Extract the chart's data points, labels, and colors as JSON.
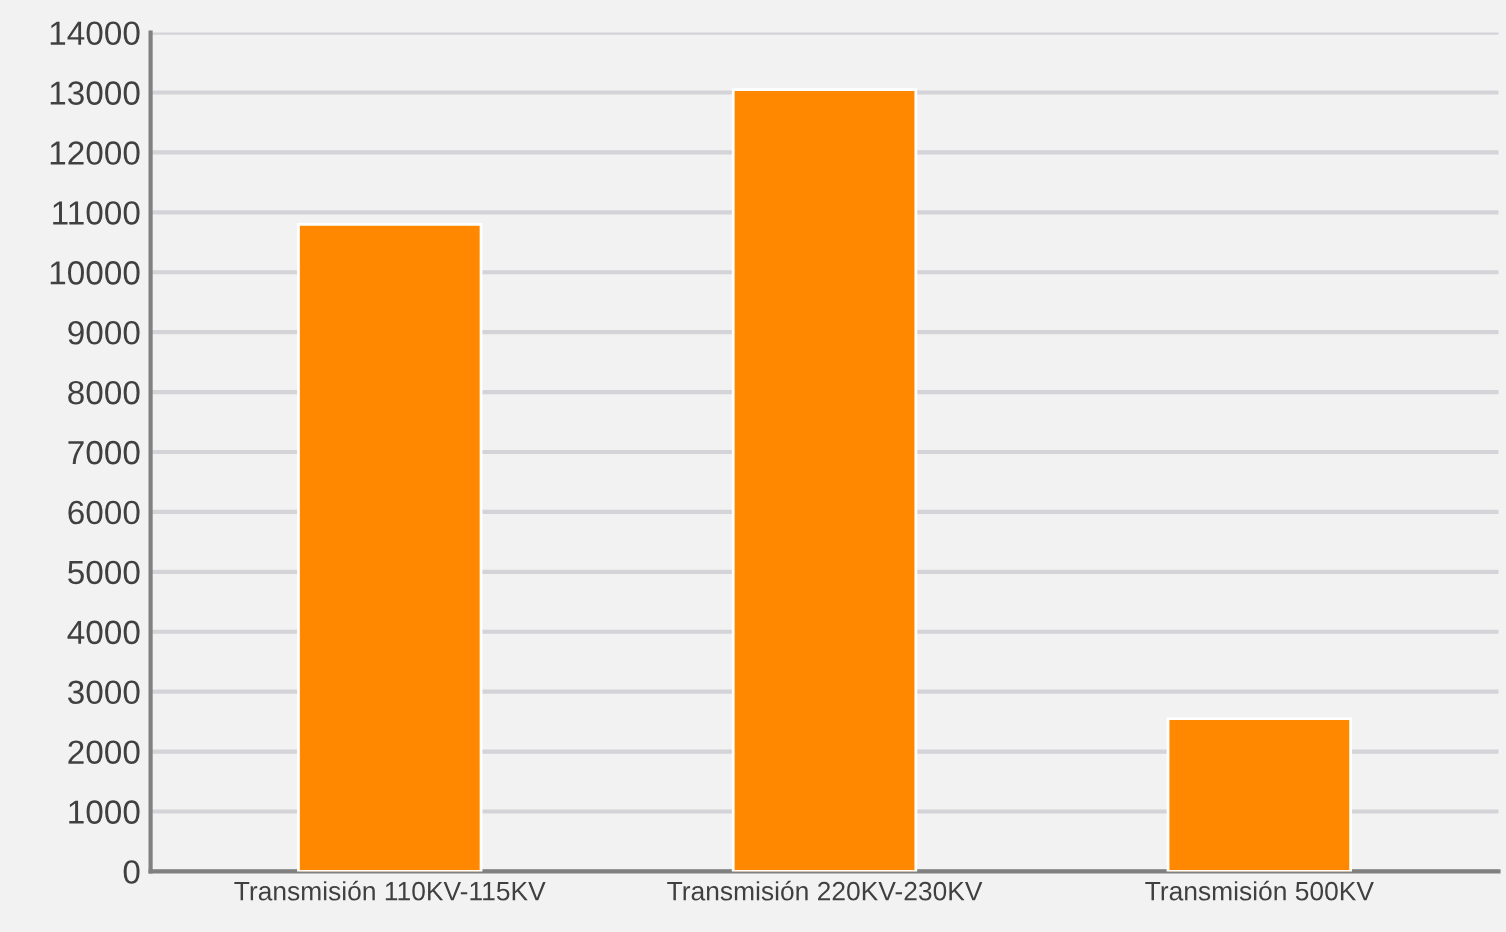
{
  "chart_data": {
    "type": "bar",
    "categories": [
      "Transmisión 110KV-115KV",
      "Transmisión 220KV-230KV",
      "Transmisión 500KV"
    ],
    "values": [
      10800,
      13050,
      2550
    ],
    "color": "#ff8800",
    "ylim": [
      0,
      14000
    ],
    "yticks": [
      0,
      1000,
      2000,
      3000,
      4000,
      5000,
      6000,
      7000,
      8000,
      9000,
      10000,
      11000,
      12000,
      13000,
      14000
    ],
    "grid": "y"
  }
}
